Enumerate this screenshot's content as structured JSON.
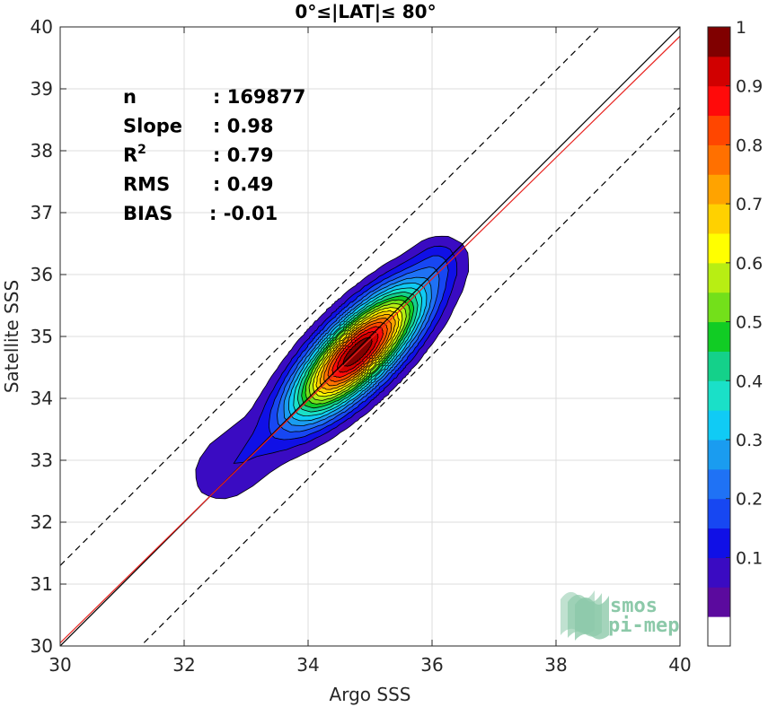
{
  "chart_data": {
    "type": "contour_density",
    "title": "0°≤|LAT|≤ 80°",
    "xlabel": "Argo SSS",
    "ylabel": "Satellite SSS",
    "xlim": [
      30,
      40
    ],
    "ylim": [
      30,
      40
    ],
    "xticks": [
      "30",
      "32",
      "34",
      "36",
      "38",
      "40"
    ],
    "yticks": [
      "30",
      "31",
      "32",
      "33",
      "34",
      "35",
      "36",
      "37",
      "38",
      "39",
      "40"
    ],
    "grid": true,
    "stats": [
      {
        "name": "n",
        "value": ": 169877"
      },
      {
        "name": "Slope",
        "value": ": 0.98"
      },
      {
        "name": "R",
        "sup": "2",
        "value": ": 0.79"
      },
      {
        "name": "RMS",
        "value": ": 0.49"
      },
      {
        "name": "BIAS",
        "value": ": -0.01"
      }
    ],
    "lines": [
      {
        "name": "identity",
        "slope": 1.0,
        "intercept": 0.0,
        "color": "#000000",
        "dash": false
      },
      {
        "name": "regression",
        "slope": 0.98,
        "intercept": 0.65,
        "color": "#e8231f",
        "dash": false
      },
      {
        "name": "upper_bound",
        "slope": 1.0,
        "intercept": 1.3,
        "color": "#000000",
        "dash": true
      },
      {
        "name": "lower_bound",
        "slope": 1.0,
        "intercept": -1.3,
        "color": "#000000",
        "dash": true
      }
    ],
    "density_levels": [
      0.05,
      0.1,
      0.15,
      0.2,
      0.25,
      0.3,
      0.35,
      0.4,
      0.45,
      0.5,
      0.55,
      0.6,
      0.65,
      0.7,
      0.75,
      0.8,
      0.85,
      0.9,
      0.95
    ],
    "density_peak": {
      "x": 34.8,
      "y": 34.75
    },
    "colorbar": {
      "range": [
        0,
        1
      ],
      "ticks": [
        "0.1",
        "0.2",
        "0.3",
        "0.4",
        "0.5",
        "0.6",
        "0.7",
        "0.8",
        "0.9",
        "1"
      ],
      "colors": [
        "#ffffff",
        "#5b0a9e",
        "#3a0bc2",
        "#1010e6",
        "#1747f2",
        "#1f72f5",
        "#1a9cf0",
        "#10cbf5",
        "#1ae0c8",
        "#14d18a",
        "#11cc24",
        "#73e01a",
        "#b8ee13",
        "#ffff00",
        "#ffd100",
        "#ffa300",
        "#ff7000",
        "#ff4600",
        "#ff0a0a",
        "#d10000",
        "#800000"
      ]
    }
  },
  "logo": {
    "line1": "smos",
    "line2": "pi-mep",
    "color": "#8cc9a9"
  }
}
